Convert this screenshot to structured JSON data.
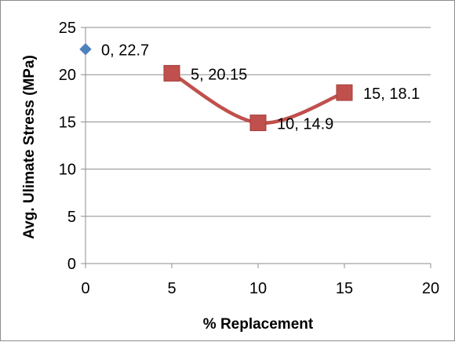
{
  "chart_data": {
    "type": "scatter",
    "title": "",
    "xlabel": "% Replacement",
    "ylabel": "Avg. Ulimate Stress (MPa)",
    "xlim": [
      0,
      20
    ],
    "ylim": [
      0,
      25
    ],
    "xticks": [
      0,
      5,
      10,
      15,
      20
    ],
    "yticks": [
      0,
      5,
      10,
      15,
      20,
      25
    ],
    "grid": "horizontal",
    "legend": "none",
    "series": [
      {
        "marker": "diamond",
        "color": "#4f81bd",
        "smooth_line": false,
        "points": [
          {
            "x": 0,
            "y": 22.7,
            "label": "0, 22.7"
          }
        ]
      },
      {
        "marker": "square",
        "color": "#c0504d",
        "smooth_line": true,
        "points": [
          {
            "x": 5,
            "y": 20.15,
            "label": "5, 20.15"
          },
          {
            "x": 10,
            "y": 14.9,
            "label": "10, 14.9"
          },
          {
            "x": 15,
            "y": 18.1,
            "label": "15, 18.1"
          }
        ]
      }
    ]
  }
}
